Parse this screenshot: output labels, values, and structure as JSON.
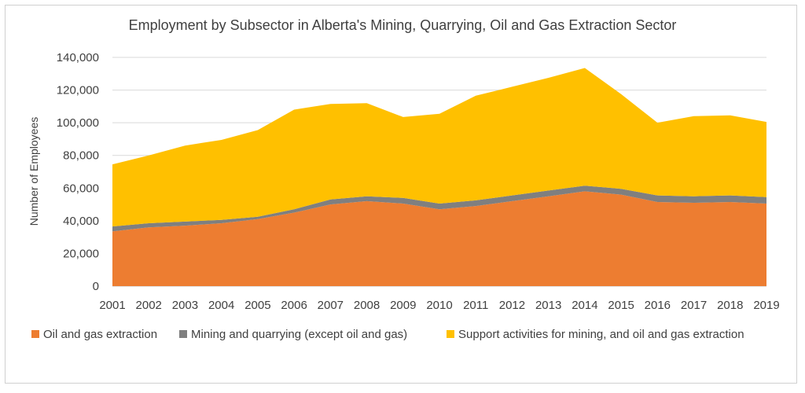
{
  "chart_data": {
    "type": "area",
    "stacked": true,
    "title": "Employment by Subsector in Alberta's Mining, Quarrying, Oil and Gas Extraction Sector",
    "xlabel": "",
    "ylabel": "Number of Employees",
    "ylim": [
      0,
      140000
    ],
    "y_ticks": [
      0,
      20000,
      40000,
      60000,
      80000,
      100000,
      120000,
      140000
    ],
    "y_tick_labels": [
      "0",
      "20,000",
      "40,000",
      "60,000",
      "80,000",
      "100,000",
      "120,000",
      "140,000"
    ],
    "grid": true,
    "legend_position": "bottom",
    "categories": [
      "2001",
      "2002",
      "2003",
      "2004",
      "2005",
      "2006",
      "2007",
      "2008",
      "2009",
      "2010",
      "2011",
      "2012",
      "2013",
      "2014",
      "2015",
      "2016",
      "2017",
      "2018",
      "2019"
    ],
    "series": [
      {
        "name": "Oil and gas extraction",
        "color": "#ED7D31",
        "values": [
          33500,
          36000,
          37000,
          38500,
          41000,
          45000,
          50000,
          52000,
          50500,
          47000,
          49000,
          52000,
          55000,
          58000,
          56000,
          51500,
          51000,
          51500,
          50500
        ]
      },
      {
        "name": "Mining and quarrying (except oil and gas)",
        "color": "#7F7F7F",
        "values": [
          3000,
          2500,
          2500,
          2000,
          1500,
          2000,
          3000,
          3000,
          3500,
          3500,
          3500,
          3500,
          3500,
          3500,
          3500,
          4000,
          4000,
          4000,
          4000
        ]
      },
      {
        "name": "Support activities for mining, and oil and gas extraction",
        "color": "#FFC000",
        "values": [
          38000,
          41500,
          46500,
          49000,
          53000,
          61000,
          58500,
          57000,
          49500,
          55000,
          64000,
          66500,
          69000,
          72000,
          58000,
          44500,
          49000,
          49000,
          46000
        ]
      }
    ]
  }
}
